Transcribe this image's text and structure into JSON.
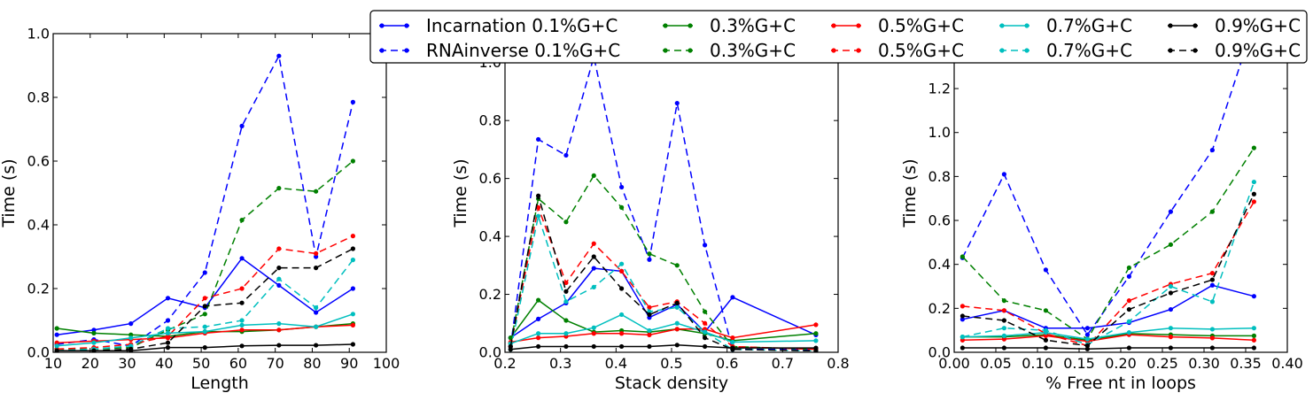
{
  "legend": {
    "placement": "top-center",
    "entries": [
      {
        "label": "Incarnation  0.1%G+C",
        "color": "#0000ff",
        "dashed": false
      },
      {
        "label": "RNAinverse  0.1%G+C",
        "color": "#0000ff",
        "dashed": true
      },
      {
        "label": "0.3%G+C",
        "color": "#008000",
        "dashed": false
      },
      {
        "label": "0.3%G+C",
        "color": "#008000",
        "dashed": true
      },
      {
        "label": "0.5%G+C",
        "color": "#ff0000",
        "dashed": false
      },
      {
        "label": "0.5%G+C",
        "color": "#ff0000",
        "dashed": true
      },
      {
        "label": "0.7%G+C",
        "color": "#00bfbf",
        "dashed": false
      },
      {
        "label": "0.7%G+C",
        "color": "#00bfbf",
        "dashed": true
      },
      {
        "label": "0.9%G+C",
        "color": "#000000",
        "dashed": false
      },
      {
        "label": "0.9%G+C",
        "color": "#000000",
        "dashed": true
      }
    ]
  },
  "chart_data": [
    {
      "type": "line",
      "xlabel": "Length",
      "ylabel": "Time (s)",
      "xlim": [
        10,
        100
      ],
      "ylim": [
        0,
        1.0
      ],
      "xticks": [
        "10",
        "20",
        "30",
        "40",
        "50",
        "60",
        "70",
        "80",
        "90",
        "100"
      ],
      "yticks": [
        "0.0",
        "0.2",
        "0.4",
        "0.6",
        "0.8",
        "1.0"
      ],
      "grid": false,
      "x": [
        11,
        21,
        31,
        41,
        51,
        61,
        71,
        81,
        91
      ],
      "series": [
        {
          "name": "Incarnation  0.1%G+C",
          "color": "#0000ff",
          "dashed": false,
          "values": [
            0.055,
            0.07,
            0.09,
            0.17,
            0.14,
            0.295,
            0.21,
            0.125,
            0.2
          ]
        },
        {
          "name": "RNAinverse  0.1%G+C",
          "color": "#0000ff",
          "dashed": true,
          "values": [
            0.025,
            0.04,
            0.02,
            0.1,
            0.25,
            0.71,
            0.93,
            0.3,
            0.785
          ]
        },
        {
          "name": "0.3%G+C",
          "color": "#008000",
          "dashed": false,
          "values": [
            0.075,
            0.06,
            0.055,
            0.05,
            0.065,
            0.065,
            0.07,
            0.08,
            0.09
          ]
        },
        {
          "name": "0.3%G+C",
          "color": "#008000",
          "dashed": true,
          "values": [
            0.01,
            0.01,
            0.015,
            0.07,
            0.12,
            0.415,
            0.515,
            0.505,
            0.6
          ]
        },
        {
          "name": "0.5%G+C",
          "color": "#ff0000",
          "dashed": false,
          "values": [
            0.03,
            0.035,
            0.04,
            0.045,
            0.06,
            0.07,
            0.07,
            0.08,
            0.085
          ]
        },
        {
          "name": "0.5%G+C",
          "color": "#ff0000",
          "dashed": true,
          "values": [
            0.01,
            0.015,
            0.025,
            0.05,
            0.17,
            0.2,
            0.325,
            0.31,
            0.365
          ]
        },
        {
          "name": "0.7%G+C",
          "color": "#00bfbf",
          "dashed": false,
          "values": [
            0.02,
            0.03,
            0.045,
            0.06,
            0.065,
            0.085,
            0.09,
            0.08,
            0.12
          ]
        },
        {
          "name": "0.7%G+C",
          "color": "#00bfbf",
          "dashed": true,
          "values": [
            0.005,
            0.01,
            0.02,
            0.075,
            0.08,
            0.1,
            0.23,
            0.14,
            0.29
          ]
        },
        {
          "name": "0.9%G+C",
          "color": "#000000",
          "dashed": false,
          "values": [
            0.005,
            0.005,
            0.005,
            0.015,
            0.015,
            0.02,
            0.022,
            0.022,
            0.025
          ]
        },
        {
          "name": "0.9%G+C",
          "color": "#000000",
          "dashed": true,
          "values": [
            0.005,
            0.005,
            0.01,
            0.03,
            0.145,
            0.155,
            0.265,
            0.265,
            0.325
          ]
        }
      ]
    },
    {
      "type": "line",
      "xlabel": "Stack density",
      "ylabel": "Time (s)",
      "xlim": [
        0.2,
        0.8
      ],
      "ylim": [
        0,
        1.1
      ],
      "xticks": [
        "0.2",
        "0.3",
        "0.4",
        "0.5",
        "0.6",
        "0.7",
        "0.8"
      ],
      "yticks": [
        "0.0",
        "0.2",
        "0.4",
        "0.6",
        "0.8",
        "1.0"
      ],
      "grid": false,
      "x": [
        0.21,
        0.26,
        0.31,
        0.36,
        0.41,
        0.46,
        0.51,
        0.56,
        0.61,
        0.76
      ],
      "series": [
        {
          "name": "Incarnation  0.1%G+C",
          "color": "#0000ff",
          "dashed": false,
          "values": [
            0.05,
            0.115,
            0.17,
            0.29,
            0.28,
            0.12,
            0.165,
            0.07,
            0.19,
            0.06
          ]
        },
        {
          "name": "RNAinverse  0.1%G+C",
          "color": "#0000ff",
          "dashed": true,
          "values": [
            0.02,
            0.735,
            0.68,
            1.02,
            0.57,
            0.32,
            0.86,
            0.37,
            0.01,
            0.01
          ]
        },
        {
          "name": "0.3%G+C",
          "color": "#008000",
          "dashed": false,
          "values": [
            0.05,
            0.18,
            0.11,
            0.07,
            0.075,
            0.07,
            0.08,
            0.065,
            0.04,
            0.065
          ]
        },
        {
          "name": "0.3%G+C",
          "color": "#008000",
          "dashed": true,
          "values": [
            0.03,
            0.53,
            0.45,
            0.61,
            0.5,
            0.34,
            0.3,
            0.14,
            0.02,
            0.01
          ]
        },
        {
          "name": "0.5%G+C",
          "color": "#ff0000",
          "dashed": false,
          "values": [
            0.035,
            0.05,
            0.055,
            0.065,
            0.065,
            0.06,
            0.08,
            0.08,
            0.05,
            0.095
          ]
        },
        {
          "name": "0.5%G+C",
          "color": "#ff0000",
          "dashed": true,
          "values": [
            0.02,
            0.5,
            0.24,
            0.375,
            0.28,
            0.155,
            0.175,
            0.1,
            0.02,
            0.01
          ]
        },
        {
          "name": "0.7%G+C",
          "color": "#00bfbf",
          "dashed": false,
          "values": [
            0.03,
            0.065,
            0.065,
            0.085,
            0.13,
            0.075,
            0.1,
            0.07,
            0.035,
            0.04
          ]
        },
        {
          "name": "0.7%G+C",
          "color": "#00bfbf",
          "dashed": true,
          "values": [
            0.01,
            0.47,
            0.175,
            0.225,
            0.305,
            0.14,
            0.155,
            0.07,
            0.01,
            0.005
          ]
        },
        {
          "name": "0.9%G+C",
          "color": "#000000",
          "dashed": false,
          "values": [
            0.01,
            0.02,
            0.02,
            0.02,
            0.02,
            0.02,
            0.025,
            0.02,
            0.015,
            0.015
          ]
        },
        {
          "name": "0.9%G+C",
          "color": "#000000",
          "dashed": true,
          "values": [
            0.02,
            0.54,
            0.21,
            0.33,
            0.22,
            0.13,
            0.17,
            0.05,
            0.01,
            0.005
          ]
        }
      ]
    },
    {
      "type": "line",
      "xlabel": "% Free nt in loops",
      "ylabel": "Time (s)",
      "xlim": [
        0.0,
        0.4
      ],
      "ylim": [
        0,
        1.45
      ],
      "xticks": [
        "0.00",
        "0.05",
        "0.10",
        "0.15",
        "0.20",
        "0.25",
        "0.30",
        "0.35",
        "0.40"
      ],
      "yticks": [
        "0.0",
        "0.2",
        "0.4",
        "0.6",
        "0.8",
        "1.0",
        "1.2",
        "1.4"
      ],
      "grid": false,
      "x": [
        0.01,
        0.06,
        0.11,
        0.16,
        0.21,
        0.26,
        0.31,
        0.36
      ],
      "series": [
        {
          "name": "Incarnation  0.1%G+C",
          "color": "#0000ff",
          "dashed": false,
          "values": [
            0.15,
            0.19,
            0.11,
            0.11,
            0.135,
            0.195,
            0.305,
            0.255
          ]
        },
        {
          "name": "RNAinverse  0.1%G+C",
          "color": "#0000ff",
          "dashed": true,
          "values": [
            0.43,
            0.81,
            0.375,
            0.08,
            0.345,
            0.64,
            0.92,
            1.5
          ]
        },
        {
          "name": "0.3%G+C",
          "color": "#008000",
          "dashed": false,
          "values": [
            0.07,
            0.07,
            0.08,
            0.055,
            0.085,
            0.08,
            0.075,
            0.075
          ]
        },
        {
          "name": "0.3%G+C",
          "color": "#008000",
          "dashed": true,
          "values": [
            0.435,
            0.235,
            0.19,
            0.06,
            0.385,
            0.49,
            0.64,
            0.93
          ]
        },
        {
          "name": "0.5%G+C",
          "color": "#ff0000",
          "dashed": false,
          "values": [
            0.055,
            0.06,
            0.075,
            0.05,
            0.08,
            0.07,
            0.065,
            0.055
          ]
        },
        {
          "name": "0.5%G+C",
          "color": "#ff0000",
          "dashed": true,
          "values": [
            0.21,
            0.19,
            0.085,
            0.03,
            0.235,
            0.31,
            0.36,
            0.685
          ]
        },
        {
          "name": "0.7%G+C",
          "color": "#00bfbf",
          "dashed": false,
          "values": [
            0.07,
            0.075,
            0.09,
            0.06,
            0.09,
            0.11,
            0.105,
            0.11
          ]
        },
        {
          "name": "0.7%G+C",
          "color": "#00bfbf",
          "dashed": true,
          "values": [
            0.07,
            0.11,
            0.1,
            0.035,
            0.14,
            0.3,
            0.23,
            0.775
          ]
        },
        {
          "name": "0.9%G+C",
          "color": "#000000",
          "dashed": false,
          "values": [
            0.02,
            0.02,
            0.02,
            0.015,
            0.02,
            0.02,
            0.02,
            0.02
          ]
        },
        {
          "name": "0.9%G+C",
          "color": "#000000",
          "dashed": true,
          "values": [
            0.165,
            0.145,
            0.055,
            0.03,
            0.195,
            0.27,
            0.33,
            0.72
          ]
        }
      ]
    }
  ]
}
